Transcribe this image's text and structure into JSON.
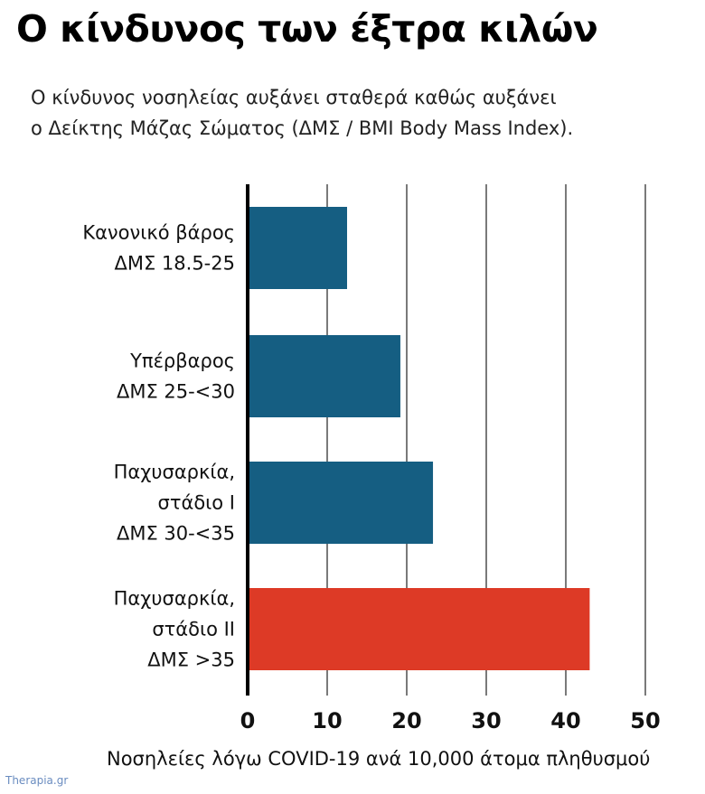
{
  "title": "Ο κίνδυνος των έξτρα κιλών",
  "subtitle": {
    "line1": "Ο κίνδυνος νοσηλείας αυξάνει σταθερά καθώς αυξάνει",
    "line2": "ο Δείκτης Μάζας Σώματος (ΔΜΣ / BMI Body Mass Index)."
  },
  "watermark": "Therapia.gr",
  "colors": {
    "bar_default": "#155e82",
    "bar_highlight": "#dd3a26",
    "grid": "#222222",
    "axis": "#000000"
  },
  "chart_data": {
    "type": "bar",
    "orientation": "horizontal",
    "title": "Ο κίνδυνος των έξτρα κιλών",
    "xlabel": "Νοσηλείες λόγω COVID-19 ανά 10,000 άτομα πληθυσμού",
    "ylabel": "",
    "xlim": [
      0,
      50
    ],
    "xticks": [
      0,
      10,
      20,
      30,
      40,
      50
    ],
    "grid": true,
    "categories": [
      [
        "Κανονικό βάρος",
        "ΔΜΣ 18.5-25"
      ],
      [
        "Υπέρβαρος",
        "ΔΜΣ 25-<30"
      ],
      [
        "Παχυσαρκία,",
        "στάδιο Ι",
        "ΔΜΣ 30-<35"
      ],
      [
        "Παχυσαρκία,",
        "στάδιο ΙΙ",
        "ΔΜΣ >35"
      ]
    ],
    "values": [
      12.5,
      19.2,
      23.3,
      43.0
    ],
    "highlight": [
      false,
      false,
      false,
      true
    ]
  }
}
